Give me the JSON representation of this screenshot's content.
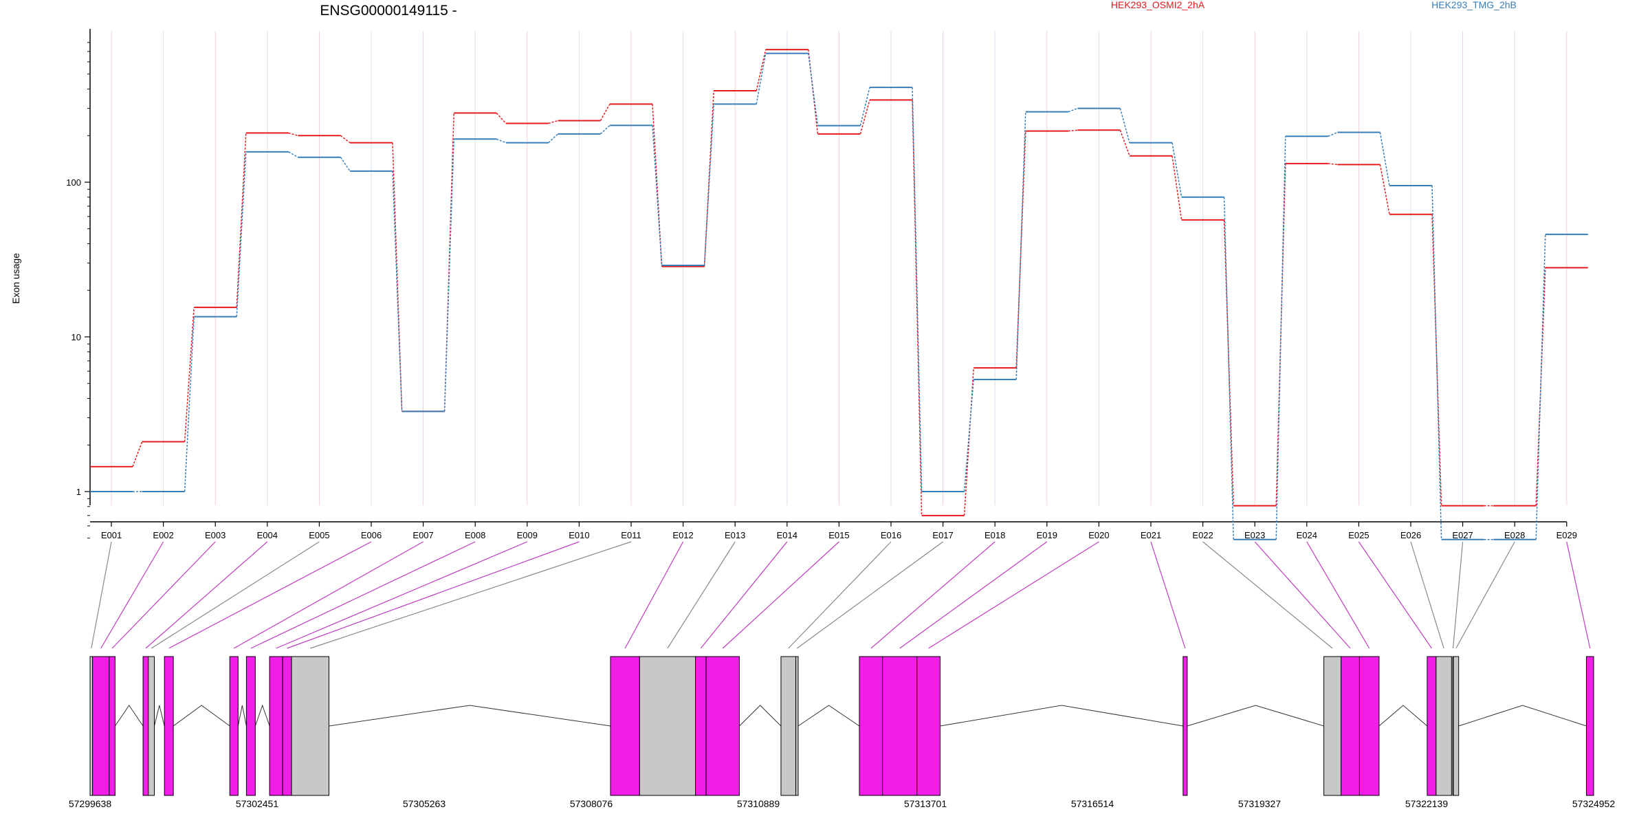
{
  "chart_data": {
    "type": "line",
    "title": "ENSG00000149115 -",
    "ylabel": "Exon usage",
    "y_scale": "log",
    "ylim": [
      0.45,
      800
    ],
    "y_ticks": [
      {
        "value": 1,
        "label": "1"
      },
      {
        "value": 10,
        "label": "10"
      },
      {
        "value": 100,
        "label": "100"
      }
    ],
    "grid": true,
    "legend_position": "top",
    "categories": [
      "E001",
      "E002",
      "E003",
      "E004",
      "E005",
      "E006",
      "E007",
      "E008",
      "E009",
      "E010",
      "E011",
      "E012",
      "E013",
      "E014",
      "E015",
      "E016",
      "E017",
      "E018",
      "E019",
      "E020",
      "E021",
      "E022",
      "E023",
      "E024",
      "E025",
      "E026",
      "E027",
      "E028",
      "E029"
    ],
    "series": [
      {
        "name": "HEK293_OSMI2_2hA",
        "color": "#e41a1c",
        "values": [
          1.45,
          2.1,
          15.5,
          208,
          200,
          180,
          3.3,
          280,
          240,
          250,
          320,
          28.5,
          390,
          720,
          205,
          340,
          0.7,
          6.3,
          214,
          217,
          148,
          57,
          0.81,
          132,
          130,
          62,
          0.81,
          0.81,
          28
        ]
      },
      {
        "name": "HEK293_TMG_2hB",
        "color": "#377eb8",
        "values": [
          1.0,
          1.0,
          13.5,
          157,
          145,
          118,
          3.3,
          190,
          180,
          205,
          233,
          29,
          320,
          680,
          232,
          410,
          1.0,
          5.3,
          285,
          300,
          180,
          80,
          0.49,
          198,
          210,
          95,
          0.49,
          0.49,
          46
        ]
      }
    ],
    "gene_model": {
      "genomic_start": 57299638,
      "genomic_end": 57324952,
      "coordinate_labels": [
        "57299638",
        "57302451",
        "57305263",
        "57308076",
        "57310889",
        "57313701",
        "57316514",
        "57319327",
        "57322139",
        "57324952"
      ],
      "exons": [
        {
          "id": "E001",
          "start": 57299638,
          "end": 57299680,
          "differential": false
        },
        {
          "id": "E002",
          "start": 57299680,
          "end": 57299960,
          "differential": true
        },
        {
          "id": "E003",
          "start": 57299960,
          "end": 57300060,
          "differential": true
        },
        {
          "id": "E004",
          "start": 57300530,
          "end": 57300620,
          "differential": true
        },
        {
          "id": "E005",
          "start": 57300620,
          "end": 57300720,
          "differential": false
        },
        {
          "id": "E006",
          "start": 57300890,
          "end": 57301040,
          "differential": true
        },
        {
          "id": "E007",
          "start": 57301990,
          "end": 57302130,
          "differential": true
        },
        {
          "id": "E008",
          "start": 57302270,
          "end": 57302420,
          "differential": true
        },
        {
          "id": "E009",
          "start": 57302660,
          "end": 57302880,
          "differential": true
        },
        {
          "id": "E010",
          "start": 57302880,
          "end": 57303030,
          "differential": true
        },
        {
          "id": "E011",
          "start": 57303030,
          "end": 57303660,
          "differential": false
        },
        {
          "id": "E012",
          "start": 57308400,
          "end": 57308890,
          "differential": true
        },
        {
          "id": "E013",
          "start": 57308890,
          "end": 57309830,
          "differential": false
        },
        {
          "id": "E014",
          "start": 57309830,
          "end": 57310010,
          "differential": true
        },
        {
          "id": "E015",
          "start": 57310010,
          "end": 57310570,
          "differential": true
        },
        {
          "id": "E016",
          "start": 57311270,
          "end": 57311520,
          "differential": false
        },
        {
          "id": "E017",
          "start": 57311520,
          "end": 57311560,
          "differential": false
        },
        {
          "id": "E018",
          "start": 57312590,
          "end": 57312980,
          "differential": true
        },
        {
          "id": "E019",
          "start": 57312980,
          "end": 57313560,
          "differential": true
        },
        {
          "id": "E020",
          "start": 57313560,
          "end": 57313950,
          "differential": true
        },
        {
          "id": "E021",
          "start": 57318040,
          "end": 57318110,
          "differential": true
        },
        {
          "id": "E022",
          "start": 57320410,
          "end": 57320700,
          "differential": false
        },
        {
          "id": "E023",
          "start": 57320700,
          "end": 57321010,
          "differential": true
        },
        {
          "id": "E024",
          "start": 57321010,
          "end": 57321340,
          "differential": true
        },
        {
          "id": "E025",
          "start": 57322150,
          "end": 57322300,
          "differential": true
        },
        {
          "id": "E026",
          "start": 57322300,
          "end": 57322560,
          "differential": false
        },
        {
          "id": "E027",
          "start": 57322580,
          "end": 57322590,
          "differential": false
        },
        {
          "id": "E028",
          "start": 57322590,
          "end": 57322680,
          "differential": false
        },
        {
          "id": "E029",
          "start": 57324830,
          "end": 57324952,
          "differential": true
        }
      ]
    }
  },
  "colors": {
    "differential": "#f01ee6",
    "non_differential": "#c8c8c8"
  }
}
